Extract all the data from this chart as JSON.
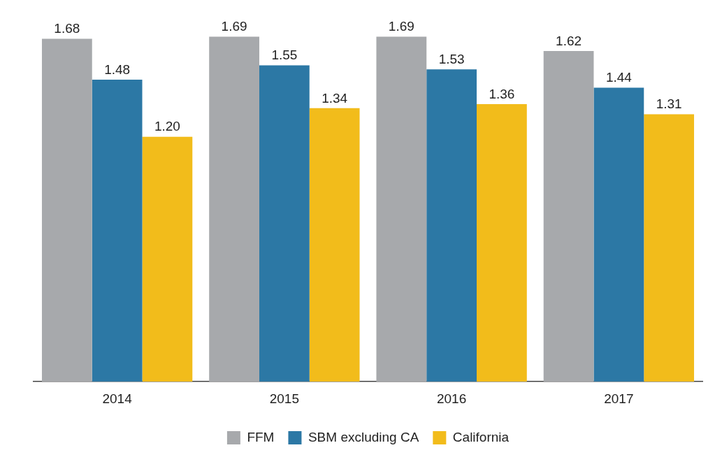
{
  "chart_data": {
    "type": "bar",
    "categories": [
      "2014",
      "2015",
      "2016",
      "2017"
    ],
    "series": [
      {
        "name": "FFM",
        "color": "#a7a9ac",
        "values": [
          1.68,
          1.69,
          1.69,
          1.62
        ],
        "value_labels": [
          "1.68",
          "1.69",
          "1.69",
          "1.62"
        ]
      },
      {
        "name": "SBM excluding CA",
        "color": "#2c78a5",
        "values": [
          1.48,
          1.55,
          1.53,
          1.44
        ],
        "value_labels": [
          "1.48",
          "1.55",
          "1.53",
          "1.44"
        ]
      },
      {
        "name": "California",
        "color": "#f2bc1b",
        "values": [
          1.2,
          1.34,
          1.36,
          1.31
        ],
        "value_labels": [
          "1.20",
          "1.34",
          "1.36",
          "1.31"
        ]
      }
    ],
    "grid": false,
    "legend": "bottom",
    "tick_labels": "x"
  }
}
